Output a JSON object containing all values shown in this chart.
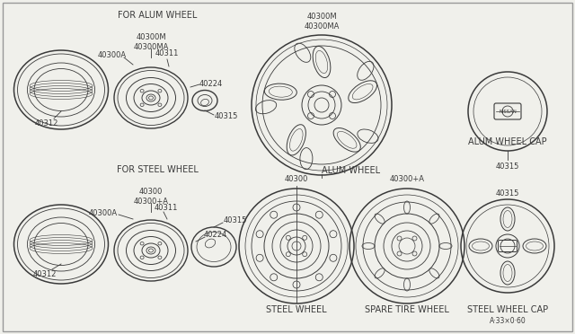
{
  "bg_color": "#f0f0eb",
  "line_color": "#3a3a3a",
  "labels": {
    "for_alum_wheel": "FOR ALUM WHEEL",
    "alum_wheel": "ALUM WHEEL",
    "alum_wheel_cap": "ALUM WHEEL CAP",
    "for_steel_wheel": "FOR STEEL WHEEL",
    "steel_wheel": "STEEL WHEEL",
    "spare_tire_wheel": "SPARE TIRE WHEEL",
    "steel_wheel_cap": "STEEL WHEEL CAP"
  },
  "part_numbers": {
    "p40312_top": "40312",
    "p40300M_top": "40300M\n40300MA",
    "p40224_top": "40224",
    "p40315_top": "40315",
    "p40300A_top": "40300A",
    "p40311_top": "40311",
    "p40300M_big": "40300M\n40300MA",
    "p40315_cap_top": "40315",
    "p40312_bot": "40312",
    "p40300_bot": "40300\n40300+A",
    "p40224_bot": "40224",
    "p40315_bot": "40315",
    "p40300A_bot": "40300A",
    "p40311_bot": "40311",
    "p40300_steel": "40300",
    "p40300A_spare": "40300+A",
    "p40315_steel_cap": "40315",
    "footnote": "A·33×0·60"
  },
  "font_size_label": 7,
  "font_size_part": 6
}
